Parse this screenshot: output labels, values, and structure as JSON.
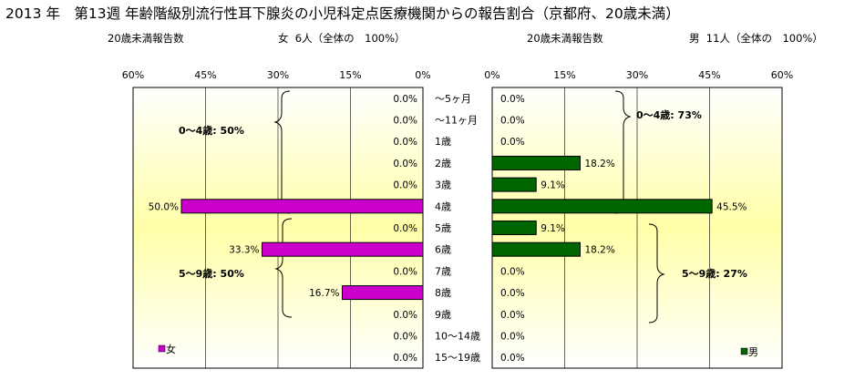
{
  "title": "2013 年　第13週 年齢階級別流行性耳下腺炎の小児科定点医療機関からの報告割合（京都府、20歳未満）",
  "female_header": {
    "label": "20歳未満報告数",
    "count_text": "女  6人（全体の　100%）"
  },
  "male_header": {
    "label": "20歳未満報告数",
    "count_text": "男  11人（全体の　100%）"
  },
  "legend": {
    "female": "女",
    "male": "男"
  },
  "colors": {
    "female": "#cc00cc",
    "male": "#006600"
  },
  "brackets": {
    "female_0_4": "0～4歳: 50%",
    "female_5_9": "5～9歳: 50%",
    "male_0_4": "0～4歳: 73%",
    "male_5_9": "5～9歳: 27%"
  },
  "chart_data": [
    {
      "type": "bar",
      "orientation": "horizontal",
      "series": [
        {
          "name": "女",
          "values": [
            0,
            0,
            0,
            0,
            0,
            50.0,
            0,
            33.3,
            0,
            16.7,
            0,
            0,
            0
          ]
        }
      ],
      "categories": [
        "～5ヶ月",
        "～11ヶ月",
        "1歳",
        "2歳",
        "3歳",
        "4歳",
        "5歳",
        "6歳",
        "7歳",
        "8歳",
        "9歳",
        "10～14歳",
        "15～19歳"
      ],
      "data_labels": [
        "0.0%",
        "0.0%",
        "0.0%",
        "0.0%",
        "0.0%",
        "50.0%",
        "0.0%",
        "33.3%",
        "0.0%",
        "16.7%",
        "0.0%",
        "0.0%",
        "0.0%"
      ],
      "xlim": [
        0,
        60
      ],
      "x_reversed": true,
      "ticks": [
        "60%",
        "45%",
        "30%",
        "15%",
        "0%"
      ],
      "tick_values": [
        60,
        45,
        30,
        15,
        0
      ],
      "grid": true
    },
    {
      "type": "bar",
      "orientation": "horizontal",
      "series": [
        {
          "name": "男",
          "values": [
            0,
            0,
            0,
            18.2,
            9.1,
            45.5,
            9.1,
            18.2,
            0,
            0,
            0,
            0,
            0
          ]
        }
      ],
      "categories": [
        "～5ヶ月",
        "～11ヶ月",
        "1歳",
        "2歳",
        "3歳",
        "4歳",
        "5歳",
        "6歳",
        "7歳",
        "8歳",
        "9歳",
        "10～14歳",
        "15～19歳"
      ],
      "data_labels": [
        "0.0%",
        "0.0%",
        "0.0%",
        "18.2%",
        "9.1%",
        "45.5%",
        "9.1%",
        "18.2%",
        "0.0%",
        "0.0%",
        "0.0%",
        "0.0%",
        "0.0%"
      ],
      "xlim": [
        0,
        60
      ],
      "ticks": [
        "0%",
        "15%",
        "30%",
        "45%",
        "60%"
      ],
      "tick_values": [
        0,
        15,
        30,
        45,
        60
      ],
      "grid": true
    }
  ]
}
